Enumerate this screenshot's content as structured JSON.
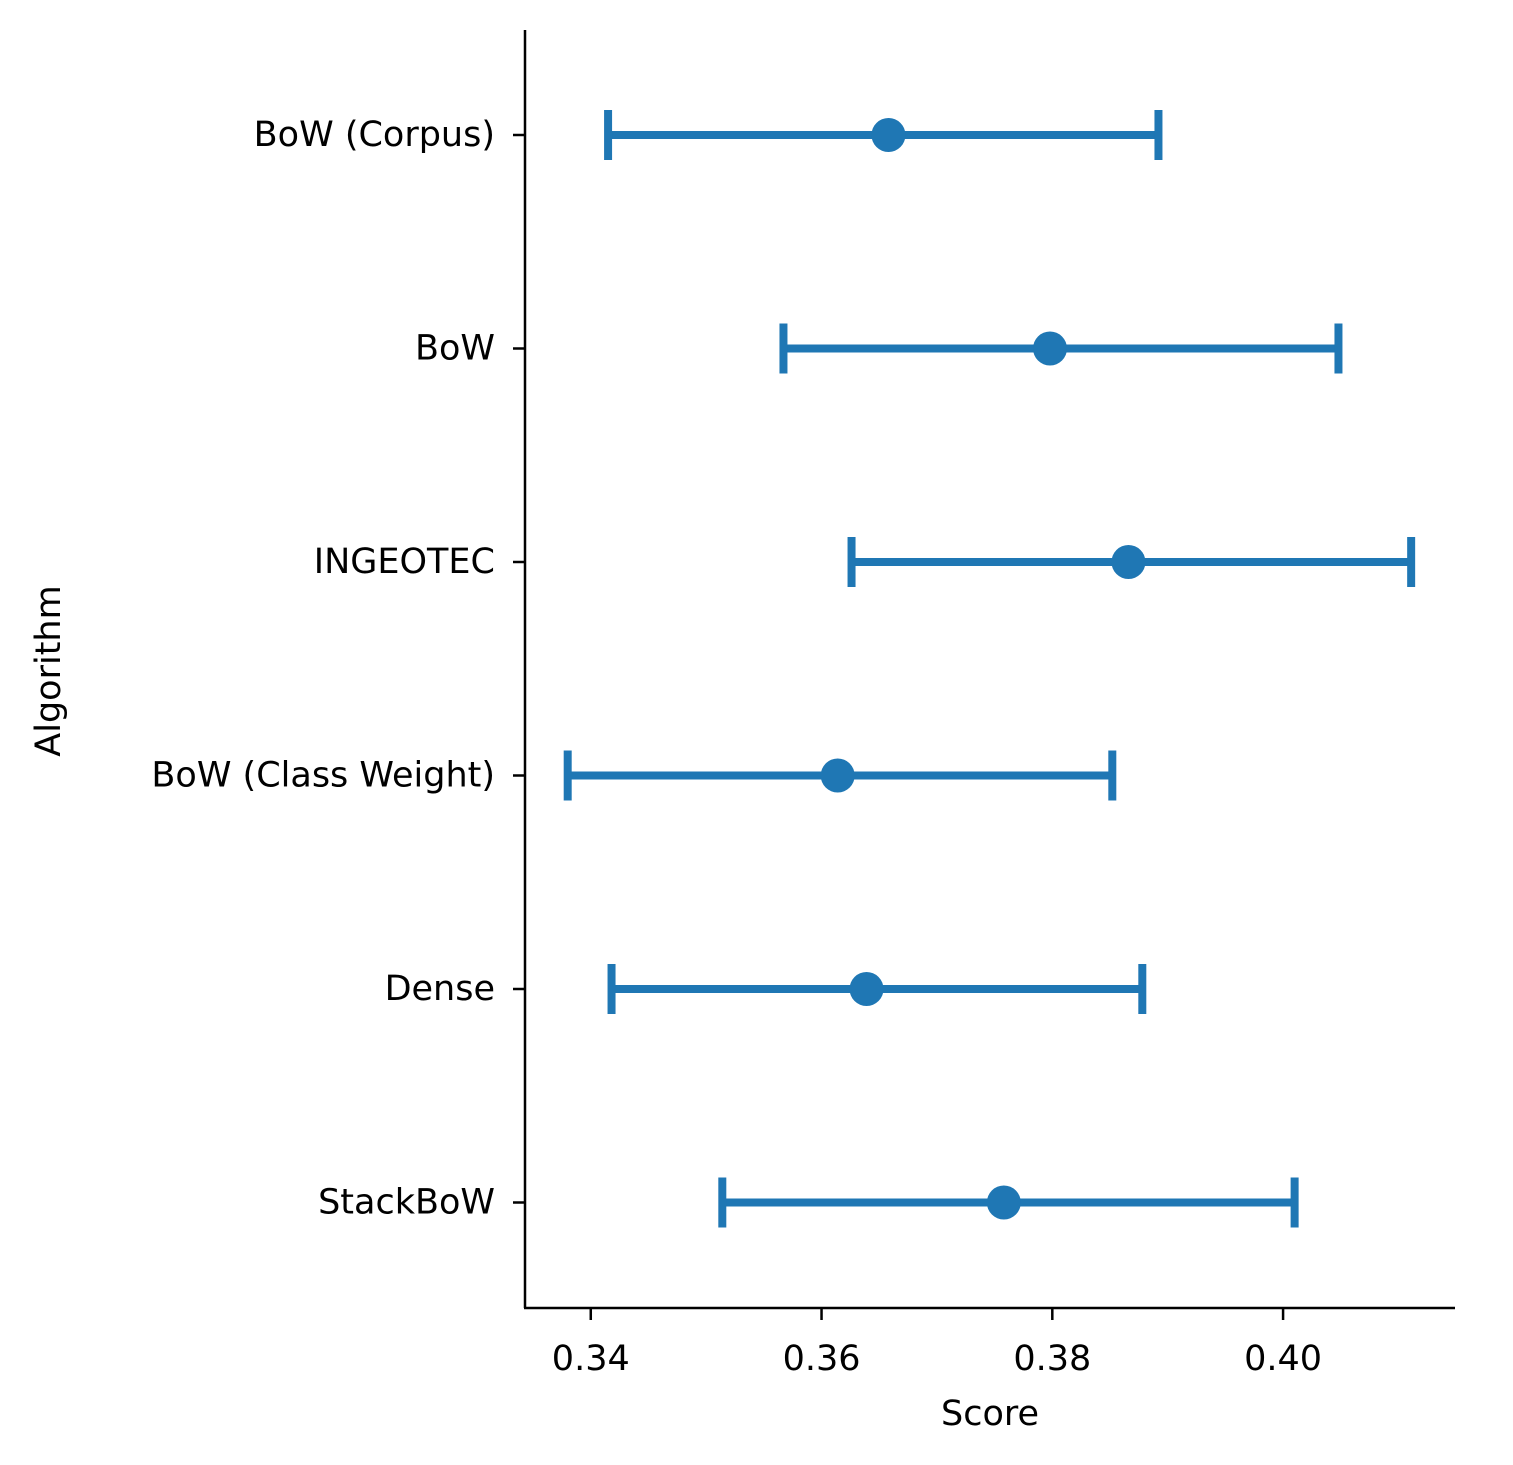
{
  "chart_data": {
    "type": "point",
    "title": "",
    "xlabel": "Score",
    "ylabel": "Algorithm",
    "xlim": [
      0.3343,
      0.4149
    ],
    "xticks": [
      0.34,
      0.36,
      0.38,
      0.4
    ],
    "xtick_labels": [
      "0.34",
      "0.36",
      "0.38",
      "0.40"
    ],
    "categories": [
      "BoW (Corpus)",
      "BoW",
      "INGEOTEC",
      "BoW (Class Weight)",
      "Dense",
      "StackBoW"
    ],
    "values": [
      0.3658,
      0.3798,
      0.3866,
      0.3614,
      0.3639,
      0.3758
    ],
    "ci_low": [
      0.3415,
      0.3567,
      0.3626,
      0.338,
      0.3418,
      0.3514
    ],
    "ci_high": [
      0.3892,
      0.4048,
      0.4111,
      0.3852,
      0.3878,
      0.401
    ],
    "color": "#1f77b4",
    "grid": false
  }
}
